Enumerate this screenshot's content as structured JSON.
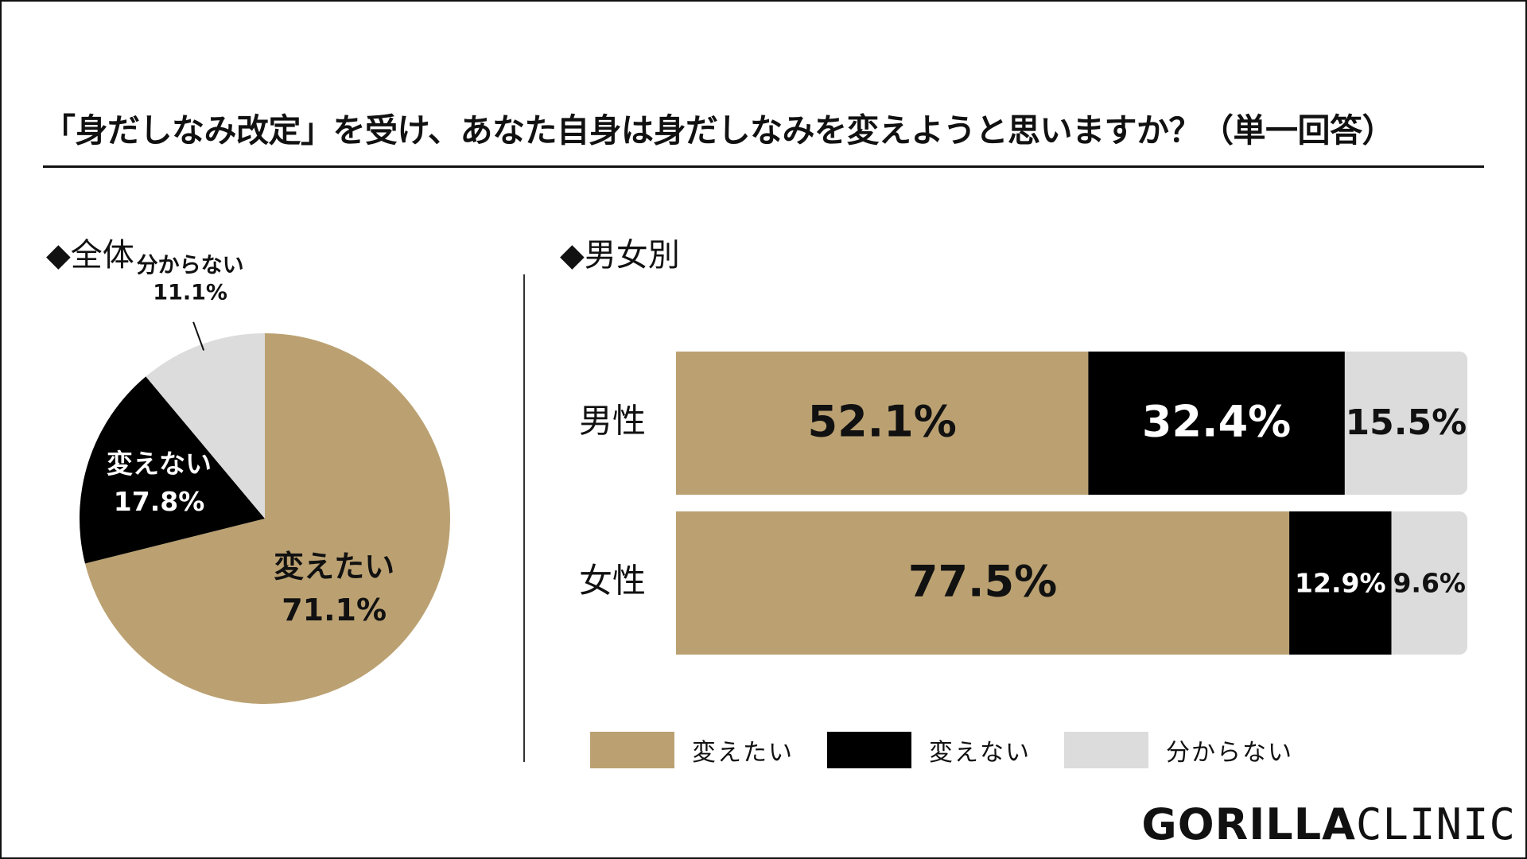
{
  "title": "「身だしなみ改定」を受け、あなた自身は身だしなみを変えようと思いますか？（単一回答）",
  "sections": {
    "overall": "◆全体",
    "by_gender": "◆男女別"
  },
  "logo": {
    "part1": "GORILLA",
    "part2": "CLINIC"
  },
  "colors": {
    "want_change": "#BBA172",
    "no_change": "#000000",
    "unknown": "#DCDCDC"
  },
  "chart_data": [
    {
      "type": "pie",
      "title": "◆全体",
      "slices": [
        {
          "label": "変えたい",
          "value": 71.1,
          "display": "71.1%"
        },
        {
          "label": "変えない",
          "value": 17.8,
          "display": "17.8%"
        },
        {
          "label": "分からない",
          "value": 11.1,
          "display": "11.1%"
        }
      ]
    },
    {
      "type": "bar",
      "orientation": "horizontal",
      "stacked": true,
      "title": "◆男女別",
      "categories": [
        "男性",
        "女性"
      ],
      "series": [
        {
          "name": "変えたい",
          "values": [
            52.1,
            77.5
          ],
          "display": [
            "52.1%",
            "77.5%"
          ]
        },
        {
          "name": "変えない",
          "values": [
            32.4,
            12.9
          ],
          "display": [
            "32.4%",
            "12.9%"
          ]
        },
        {
          "name": "分からない",
          "values": [
            15.5,
            9.6
          ],
          "display": [
            "15.5%",
            "9.6%"
          ]
        }
      ],
      "xlim": [
        0,
        100
      ],
      "legend": "bottom"
    }
  ]
}
